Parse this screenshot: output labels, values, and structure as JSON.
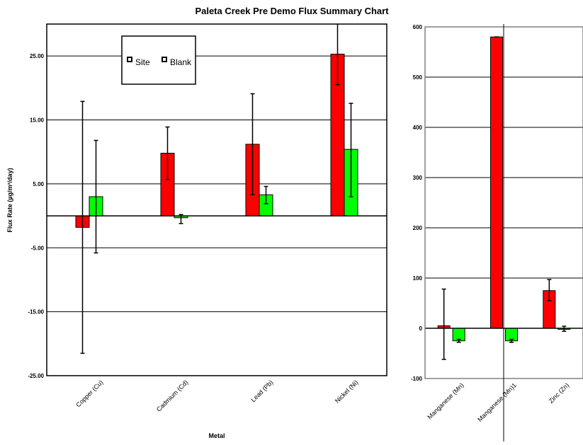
{
  "chart_data": [
    {
      "type": "bar",
      "title": "Paleta Creek Pre Demo Flux Summary Chart",
      "xlabel": "Metal",
      "ylabel": "Flux Rate (µg/m²/day)",
      "categories": [
        "Copper (Cu)",
        "Cadmium (Cd)",
        "Lead (Pb)",
        "Nickel (Ni)"
      ],
      "ylim": [
        -25,
        30
      ],
      "yticks": [
        -25,
        -15,
        -5,
        5,
        15,
        25
      ],
      "ytick_labels": [
        "-25.00",
        "-15.00",
        "-5.00",
        "5.00",
        "15.00",
        "25.00"
      ],
      "grid": true,
      "legend": {
        "placement": "top-center",
        "entries": [
          "Site",
          "Blank"
        ]
      },
      "series": [
        {
          "name": "Site",
          "color": "#ff0000",
          "values": [
            -1.8,
            9.8,
            11.2,
            25.3
          ],
          "error_low": [
            -21.5,
            5.7,
            3.3,
            20.5
          ],
          "error_high": [
            17.9,
            13.9,
            19.1,
            30
          ]
        },
        {
          "name": "Blank",
          "color": "#00ff00",
          "values": [
            3.0,
            -0.3,
            3.3,
            10.4
          ],
          "error_low": [
            -5.8,
            -1.2,
            1.9,
            3.0
          ],
          "error_high": [
            11.8,
            0.2,
            4.6,
            17.6
          ]
        }
      ]
    },
    {
      "type": "bar",
      "categories": [
        "Manganese (Mn)",
        "Manganese (Mn)1",
        "Zinc (Zn)"
      ],
      "ylim": [
        -100,
        600
      ],
      "yticks": [
        -100,
        0,
        100,
        200,
        300,
        400,
        500,
        600
      ],
      "ytick_labels": [
        "-100",
        "0",
        "100",
        "200",
        "300",
        "400",
        "500",
        "600"
      ],
      "grid": true,
      "series": [
        {
          "name": "Site",
          "color": "#ff0000",
          "values": [
            5,
            580,
            75
          ],
          "error_low": [
            -62,
            580,
            55
          ],
          "error_high": [
            78,
            580,
            97
          ]
        },
        {
          "name": "Blank",
          "color": "#00ff00",
          "values": [
            -25,
            -25,
            -1
          ],
          "error_low": [
            -28,
            -28,
            -6
          ],
          "error_high": [
            -22,
            -22,
            4
          ]
        }
      ]
    }
  ]
}
